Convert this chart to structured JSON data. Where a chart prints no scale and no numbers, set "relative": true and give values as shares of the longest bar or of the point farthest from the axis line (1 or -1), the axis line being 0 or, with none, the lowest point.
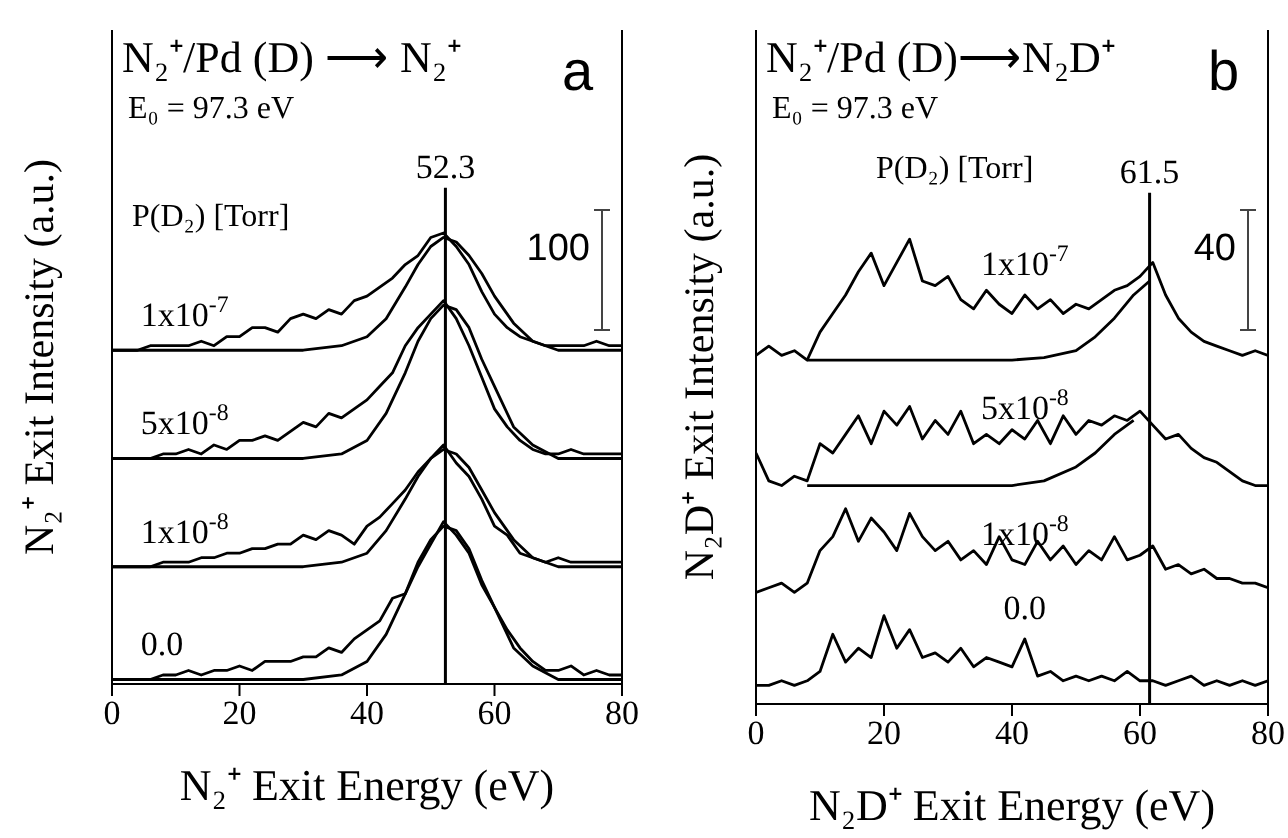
{
  "chart_data": [
    {
      "type": "line",
      "title": "N₂⁺/Pd (D) ⟶ N₂⁺",
      "subtitle": "E₀ = 97.3 eV",
      "xlabel": "N₂⁺ Exit Energy (eV)",
      "ylabel": "N₂⁺ Exit Intensity (a.u.)",
      "legend_title": "P(D₂) [Torr]",
      "annotations": [
        "a",
        "100"
      ],
      "relative": true,
      "marker": "none",
      "line_style": "solid",
      "xlim": [
        0,
        80
      ],
      "xticks": [
        0,
        20,
        40,
        60,
        80
      ],
      "x": [
        0,
        2,
        4,
        6,
        8,
        10,
        12,
        14,
        16,
        18,
        20,
        22,
        24,
        26,
        28,
        30,
        32,
        34,
        36,
        38,
        40,
        42,
        44,
        46,
        48,
        50,
        52,
        54,
        56,
        58,
        60,
        62,
        64,
        66,
        68,
        70,
        72,
        74,
        76,
        78,
        80
      ],
      "ref_lines": [
        {
          "axis": "x",
          "value": 52.3,
          "label": "52.3",
          "color": "#000000"
        }
      ],
      "series": [
        {
          "name": "1x10$^{-7}$",
          "color": "#000000",
          "values": [
            0.74,
            0.74,
            0.74,
            0.75,
            0.75,
            0.75,
            0.75,
            0.76,
            0.75,
            0.77,
            0.77,
            0.79,
            0.79,
            0.78,
            0.81,
            0.82,
            0.81,
            0.83,
            0.82,
            0.85,
            0.86,
            0.88,
            0.9,
            0.93,
            0.95,
            0.99,
            1.0,
            0.97,
            0.93,
            0.87,
            0.82,
            0.79,
            0.77,
            0.76,
            0.75,
            0.75,
            0.75,
            0.75,
            0.76,
            0.75,
            0.75
          ]
        },
        {
          "color": "#000000",
          "x": [
            0,
            30,
            36,
            40,
            43,
            46,
            48,
            50,
            52,
            54,
            56,
            58,
            60,
            63,
            66,
            70,
            80
          ],
          "values": [
            0.74,
            0.74,
            0.75,
            0.77,
            0.81,
            0.88,
            0.93,
            0.97,
            0.99,
            0.98,
            0.95,
            0.91,
            0.86,
            0.8,
            0.76,
            0.74,
            0.74
          ]
        },
        {
          "name": "5x10$^{-8}$",
          "color": "#000000",
          "values": [
            0.5,
            0.5,
            0.5,
            0.5,
            0.51,
            0.51,
            0.52,
            0.51,
            0.53,
            0.52,
            0.54,
            0.54,
            0.55,
            0.54,
            0.56,
            0.58,
            0.57,
            0.6,
            0.59,
            0.61,
            0.63,
            0.66,
            0.69,
            0.75,
            0.79,
            0.82,
            0.85,
            0.81,
            0.75,
            0.68,
            0.61,
            0.57,
            0.54,
            0.52,
            0.51,
            0.51,
            0.52,
            0.51,
            0.51,
            0.51,
            0.51
          ]
        },
        {
          "color": "#000000",
          "x": [
            0,
            30,
            36,
            40,
            43,
            46,
            48,
            50,
            52,
            54,
            56,
            58,
            60,
            63,
            66,
            70,
            80
          ],
          "values": [
            0.5,
            0.5,
            0.51,
            0.54,
            0.6,
            0.69,
            0.76,
            0.81,
            0.84,
            0.83,
            0.79,
            0.72,
            0.66,
            0.57,
            0.53,
            0.5,
            0.5
          ]
        },
        {
          "name": "1x10$^{-8}$",
          "color": "#000000",
          "values": [
            0.26,
            0.26,
            0.26,
            0.26,
            0.27,
            0.27,
            0.27,
            0.28,
            0.28,
            0.29,
            0.29,
            0.3,
            0.3,
            0.31,
            0.31,
            0.33,
            0.32,
            0.34,
            0.33,
            0.31,
            0.35,
            0.37,
            0.4,
            0.43,
            0.47,
            0.5,
            0.53,
            0.49,
            0.46,
            0.41,
            0.35,
            0.33,
            0.29,
            0.28,
            0.27,
            0.28,
            0.27,
            0.27,
            0.27,
            0.27,
            0.27
          ]
        },
        {
          "color": "#000000",
          "x": [
            0,
            30,
            36,
            40,
            43,
            46,
            48,
            50,
            52,
            54,
            56,
            58,
            60,
            63,
            66,
            70,
            80
          ],
          "values": [
            0.26,
            0.26,
            0.27,
            0.29,
            0.34,
            0.41,
            0.46,
            0.5,
            0.52,
            0.51,
            0.48,
            0.43,
            0.38,
            0.32,
            0.28,
            0.26,
            0.26
          ]
        },
        {
          "name": "0.0",
          "color": "#000000",
          "values": [
            0.01,
            0.01,
            0.01,
            0.01,
            0.02,
            0.02,
            0.03,
            0.02,
            0.03,
            0.03,
            0.04,
            0.03,
            0.05,
            0.05,
            0.05,
            0.06,
            0.06,
            0.08,
            0.07,
            0.1,
            0.12,
            0.14,
            0.19,
            0.2,
            0.26,
            0.31,
            0.36,
            0.33,
            0.29,
            0.22,
            0.17,
            0.12,
            0.08,
            0.05,
            0.03,
            0.03,
            0.04,
            0.02,
            0.03,
            0.02,
            0.02
          ]
        },
        {
          "color": "#000000",
          "x": [
            0,
            30,
            36,
            40,
            43,
            46,
            48,
            50,
            52,
            54,
            56,
            58,
            60,
            63,
            66,
            70,
            80
          ],
          "values": [
            0.01,
            0.01,
            0.02,
            0.05,
            0.11,
            0.2,
            0.27,
            0.32,
            0.35,
            0.34,
            0.3,
            0.23,
            0.17,
            0.08,
            0.04,
            0.01,
            0.01
          ]
        }
      ]
    },
    {
      "type": "line",
      "title": "N₂⁺/Pd (D)⟶N₂D⁺",
      "subtitle": "E₀ = 97.3 eV",
      "xlabel": "N₂D⁺ Exit Energy (eV)",
      "ylabel": "N₂D⁺ Exit Intensity (a.u.)",
      "legend_title": "P(D₂)  [Torr]",
      "annotations": [
        "b",
        "40"
      ],
      "relative": true,
      "marker": "none",
      "line_style": "solid",
      "xlim": [
        0,
        80
      ],
      "xticks": [
        0,
        20,
        40,
        60,
        80
      ],
      "x": [
        0,
        2,
        4,
        6,
        8,
        10,
        12,
        14,
        16,
        18,
        20,
        22,
        24,
        26,
        28,
        30,
        32,
        34,
        36,
        38,
        40,
        42,
        44,
        46,
        48,
        50,
        52,
        54,
        56,
        58,
        60,
        62,
        64,
        66,
        68,
        70,
        72,
        74,
        76,
        78,
        80
      ],
      "ref_lines": [
        {
          "axis": "x",
          "value": 61.5,
          "label": "61.5",
          "color": "#000000"
        }
      ],
      "series": [
        {
          "name": "1x10$^{-7}$",
          "color": "#000000",
          "values": [
            0.75,
            0.77,
            0.75,
            0.76,
            0.74,
            0.8,
            0.84,
            0.88,
            0.93,
            0.97,
            0.9,
            0.95,
            1.0,
            0.91,
            0.9,
            0.92,
            0.87,
            0.85,
            0.89,
            0.86,
            0.84,
            0.88,
            0.85,
            0.87,
            0.84,
            0.86,
            0.85,
            0.87,
            0.89,
            0.9,
            0.92,
            0.95,
            0.88,
            0.83,
            0.8,
            0.78,
            0.77,
            0.76,
            0.75,
            0.76,
            0.75
          ]
        },
        {
          "color": "#000000",
          "x": [
            8,
            20,
            30,
            40,
            45,
            50,
            53,
            56,
            59,
            61.5
          ],
          "values": [
            0.74,
            0.74,
            0.74,
            0.74,
            0.745,
            0.76,
            0.79,
            0.83,
            0.88,
            0.91
          ]
        },
        {
          "name": "5x10$^{-8}$",
          "color": "#000000",
          "values": [
            0.54,
            0.48,
            0.47,
            0.49,
            0.48,
            0.56,
            0.54,
            0.58,
            0.62,
            0.56,
            0.63,
            0.6,
            0.64,
            0.57,
            0.61,
            0.58,
            0.63,
            0.56,
            0.58,
            0.56,
            0.59,
            0.57,
            0.61,
            0.56,
            0.62,
            0.58,
            0.61,
            0.6,
            0.62,
            0.61,
            0.63,
            0.6,
            0.57,
            0.58,
            0.55,
            0.53,
            0.52,
            0.5,
            0.48,
            0.47,
            0.47
          ]
        },
        {
          "color": "#000000",
          "x": [
            8,
            20,
            30,
            40,
            45,
            50,
            53,
            56,
            59
          ],
          "values": [
            0.47,
            0.47,
            0.47,
            0.47,
            0.48,
            0.51,
            0.54,
            0.58,
            0.61
          ]
        },
        {
          "name": "1x10$^{-8}$",
          "color": "#000000",
          "values": [
            0.24,
            0.25,
            0.26,
            0.24,
            0.26,
            0.33,
            0.36,
            0.42,
            0.35,
            0.4,
            0.37,
            0.33,
            0.41,
            0.36,
            0.33,
            0.35,
            0.31,
            0.33,
            0.3,
            0.36,
            0.31,
            0.3,
            0.35,
            0.31,
            0.34,
            0.3,
            0.33,
            0.31,
            0.36,
            0.31,
            0.32,
            0.34,
            0.29,
            0.3,
            0.28,
            0.29,
            0.27,
            0.27,
            0.26,
            0.26,
            0.25
          ]
        },
        {
          "name": "0.0",
          "color": "#000000",
          "values": [
            0.04,
            0.04,
            0.05,
            0.04,
            0.05,
            0.07,
            0.15,
            0.09,
            0.12,
            0.1,
            0.19,
            0.12,
            0.16,
            0.1,
            0.11,
            0.09,
            0.12,
            0.08,
            0.1,
            0.09,
            0.08,
            0.14,
            0.06,
            0.07,
            0.05,
            0.06,
            0.05,
            0.06,
            0.05,
            0.07,
            0.05,
            0.05,
            0.04,
            0.05,
            0.06,
            0.04,
            0.05,
            0.04,
            0.05,
            0.04,
            0.05
          ]
        }
      ]
    }
  ]
}
